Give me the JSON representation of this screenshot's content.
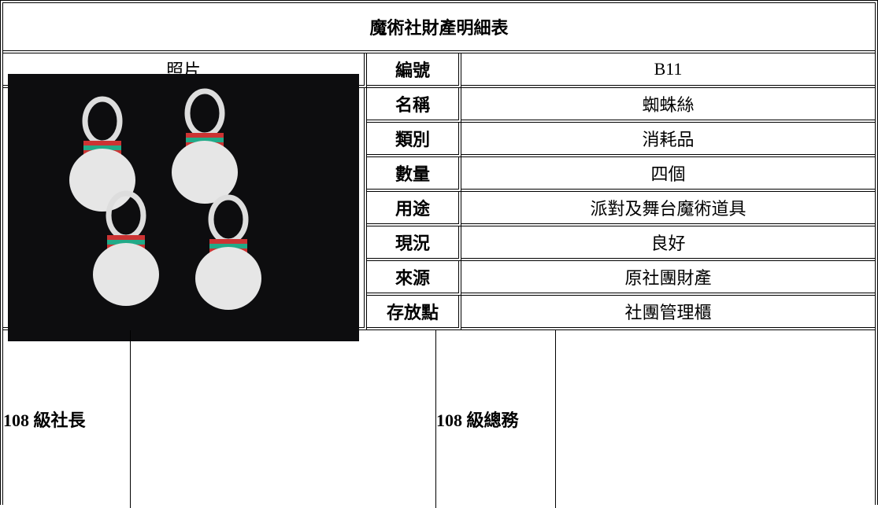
{
  "title": "魔術社財產明細表",
  "photo_header": "照片",
  "fields": [
    {
      "label": "編號",
      "value": "B11"
    },
    {
      "label": "名稱",
      "value": "蜘蛛絲"
    },
    {
      "label": "類別",
      "value": "消耗品"
    },
    {
      "label": "數量",
      "value": "四個"
    },
    {
      "label": "用途",
      "value": "派對及舞台魔術道具"
    },
    {
      "label": "現況",
      "value": "良好"
    },
    {
      "label": "來源",
      "value": "原社團財產"
    },
    {
      "label": "存放點",
      "value": "社團管理櫃"
    }
  ],
  "signatures": [
    {
      "label": "108 級社長"
    },
    {
      "label": "108 級總務"
    }
  ]
}
